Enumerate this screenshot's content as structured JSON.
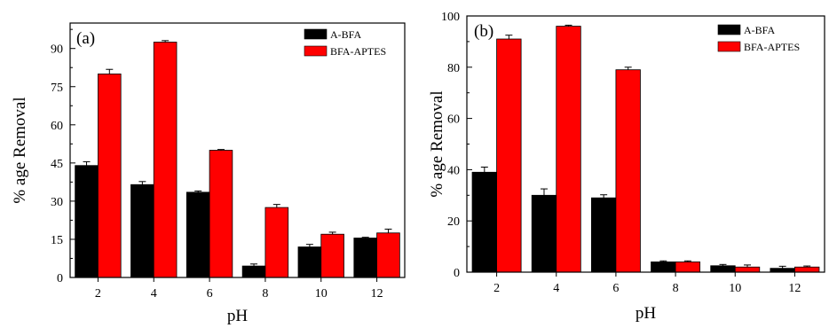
{
  "chart_data": [
    {
      "type": "bar",
      "panel_label": "(a)",
      "categories": [
        "2",
        "4",
        "6",
        "8",
        "10",
        "12"
      ],
      "xlabel": "pH",
      "ylabel": "% age Removal",
      "ylim": [
        0,
        100
      ],
      "yticks": [
        0,
        15,
        30,
        45,
        60,
        75,
        90
      ],
      "legend_position": "top-right",
      "grid": false,
      "series": [
        {
          "name": "A-BFA",
          "color": "#000000",
          "values": [
            44,
            36.5,
            33.5,
            4.5,
            12,
            15.5
          ],
          "errors": [
            1.5,
            1.2,
            0.5,
            0.8,
            1.0,
            0.3
          ]
        },
        {
          "name": "BFA-APTES",
          "color": "#ff0000",
          "values": [
            80,
            92.5,
            50,
            27.5,
            17,
            17.5
          ],
          "errors": [
            1.8,
            0.6,
            0.3,
            1.2,
            0.8,
            1.5
          ]
        }
      ]
    },
    {
      "type": "bar",
      "panel_label": "(b)",
      "categories": [
        "2",
        "4",
        "6",
        "8",
        "10",
        "12"
      ],
      "xlabel": "pH",
      "ylabel": "% age Removal",
      "ylim": [
        0,
        100
      ],
      "yticks": [
        0,
        20,
        40,
        60,
        80,
        100
      ],
      "legend_position": "top-right",
      "grid": false,
      "series": [
        {
          "name": "A-BFA",
          "color": "#000000",
          "values": [
            39,
            30,
            29,
            4,
            2.5,
            1.5
          ],
          "errors": [
            2.0,
            2.5,
            1.2,
            0.4,
            0.5,
            0.8
          ]
        },
        {
          "name": "BFA-APTES",
          "color": "#ff0000",
          "values": [
            91,
            96,
            79,
            4,
            2,
            2
          ],
          "errors": [
            1.5,
            0.4,
            1.0,
            0.4,
            0.8,
            0.4
          ]
        }
      ]
    }
  ]
}
